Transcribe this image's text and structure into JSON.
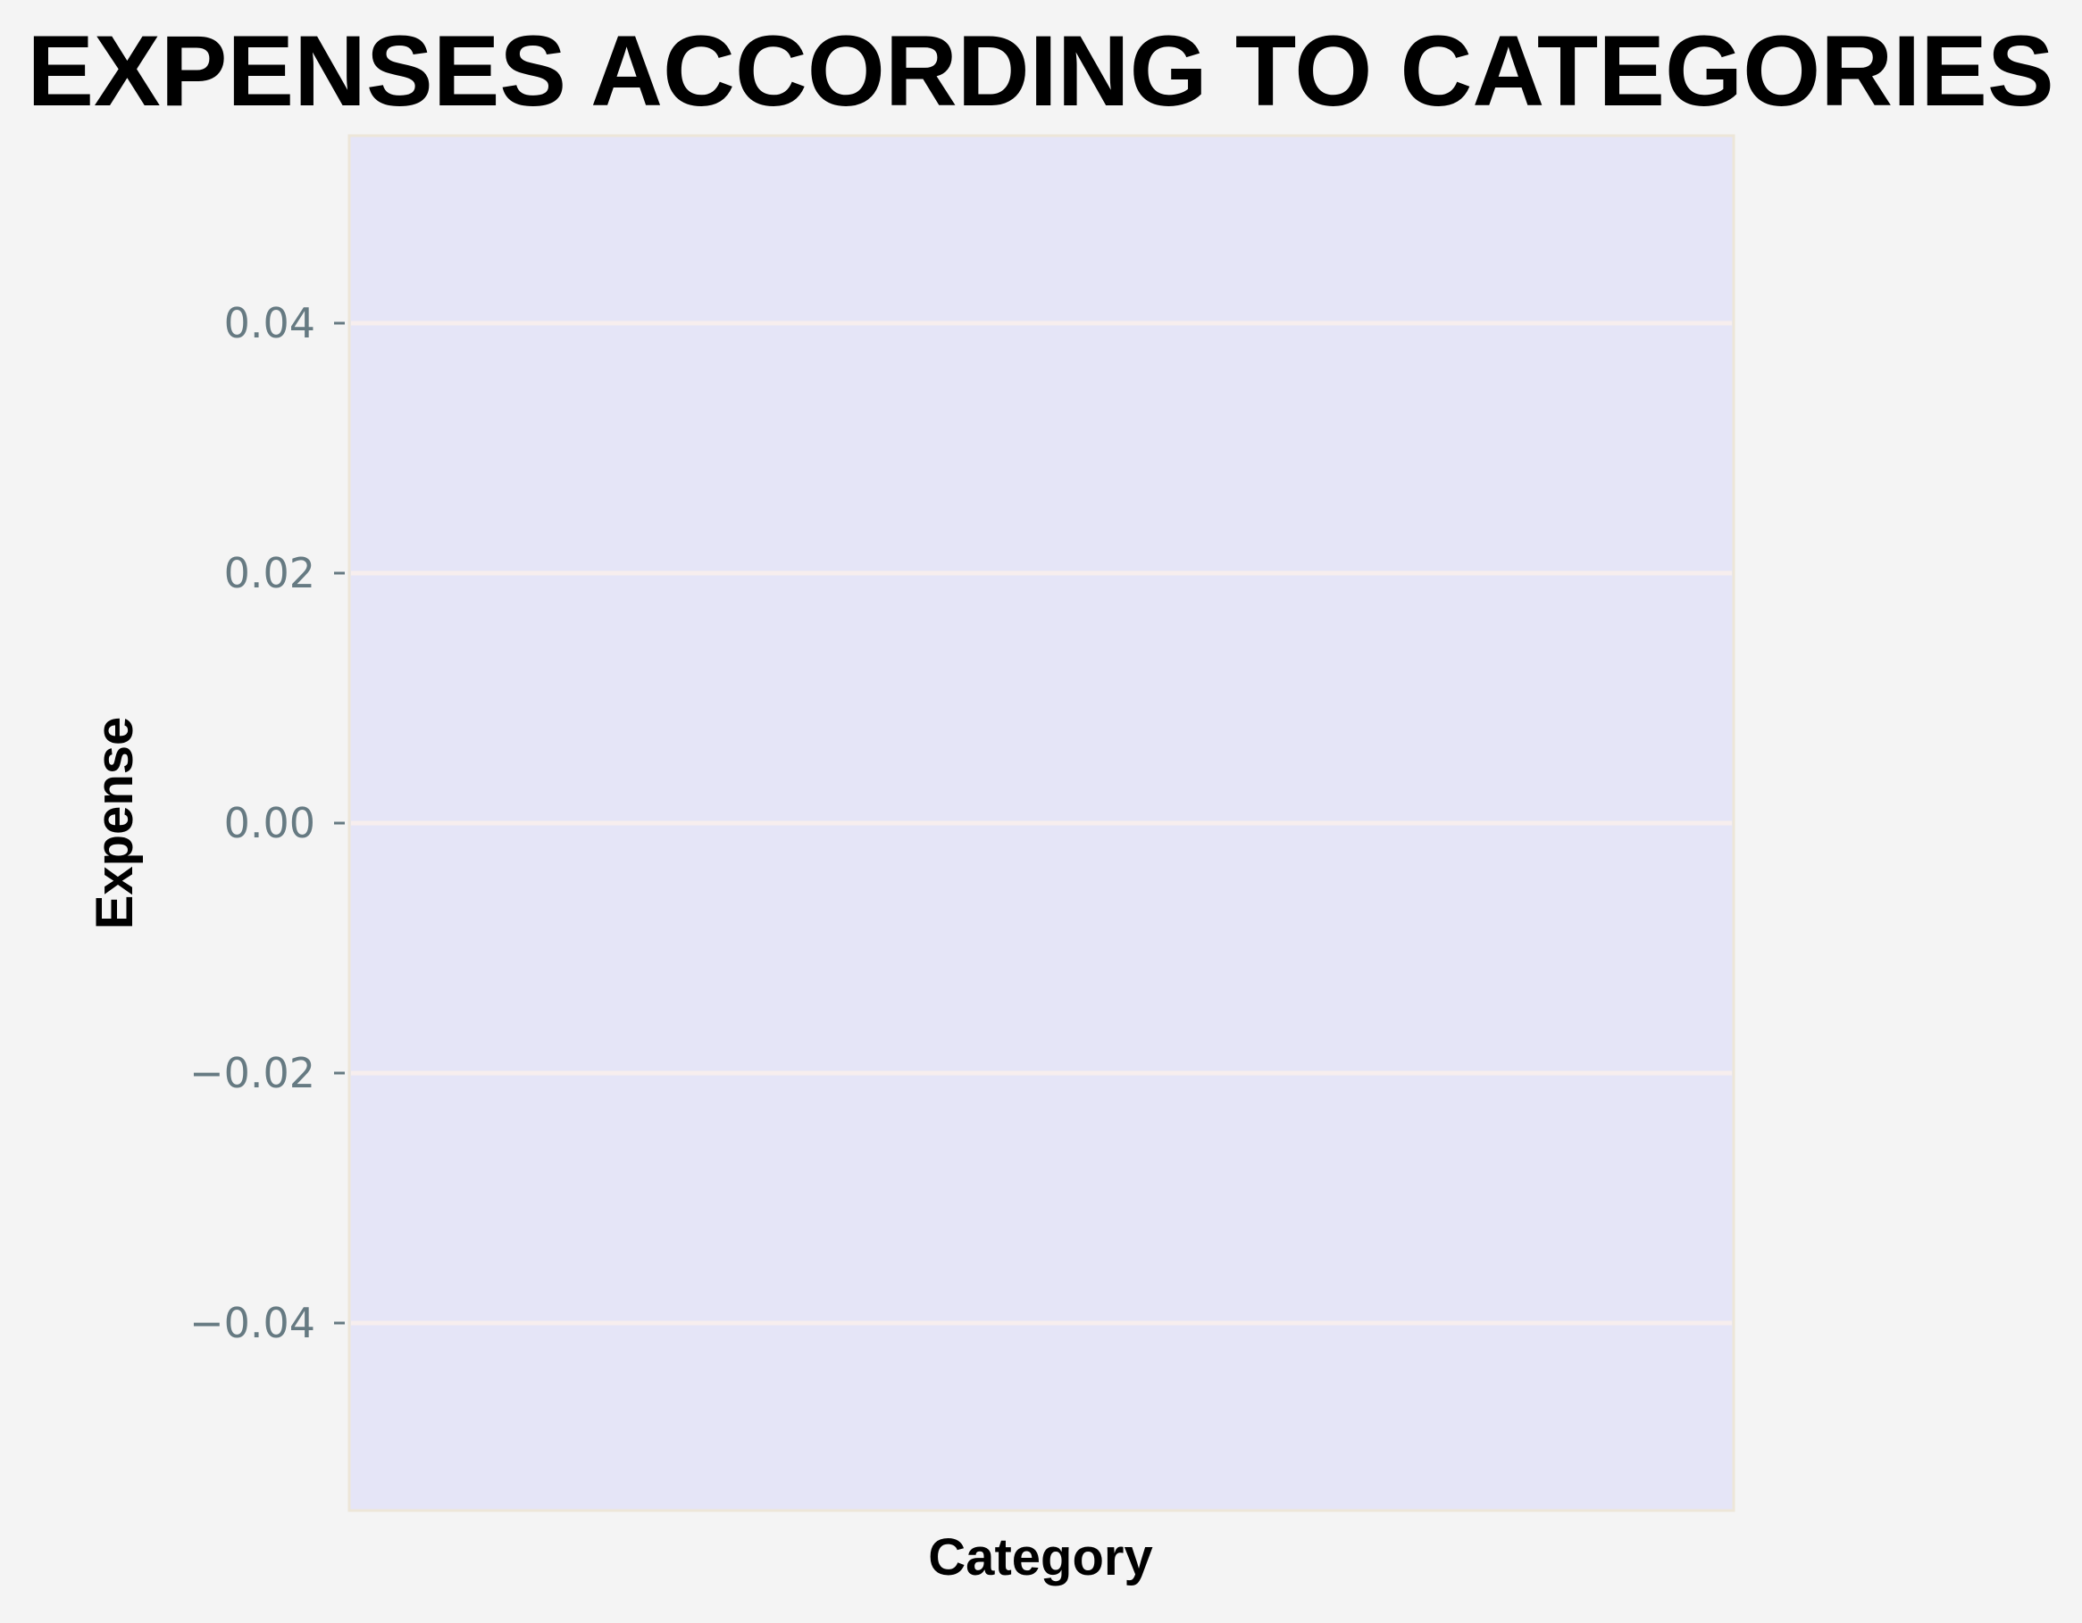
{
  "chart_data": {
    "type": "bar",
    "title": "EXPENSES ACCORDING TO CATEGORIES",
    "xlabel": "Category",
    "ylabel": "Expense",
    "categories": [],
    "values": [],
    "ylim": [
      -0.055,
      0.055
    ],
    "yticks": [
      0.04,
      0.02,
      0.0,
      -0.02,
      -0.04
    ],
    "ytick_labels": [
      "0.04",
      "0.02",
      "0.00",
      "−0.02",
      "−0.04"
    ],
    "grid": "horizontal",
    "legend": "none"
  },
  "colors": {
    "figure_background": "#f4f4f4",
    "plot_background": "#e5e5f7",
    "plot_border": "#ede6d8",
    "grid_line": "#f7eeee",
    "tick_label": "#667a82",
    "text": "#000000"
  }
}
